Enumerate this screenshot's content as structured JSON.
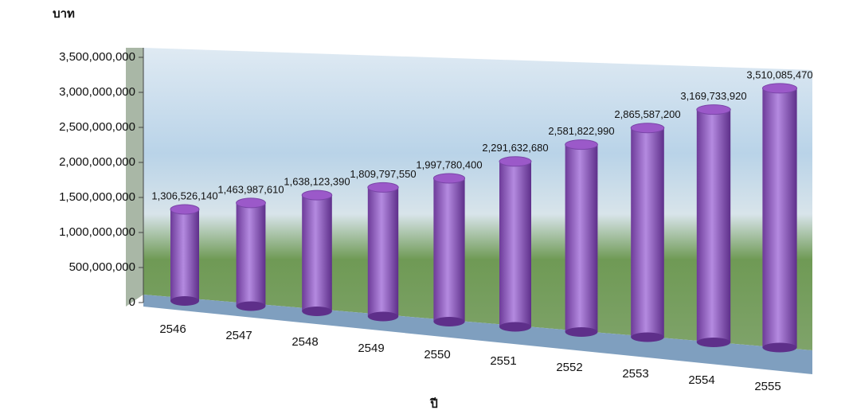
{
  "chart_data": {
    "type": "bar",
    "y_axis_title": "บาท",
    "x_axis_title": "ปี",
    "categories": [
      "2546",
      "2547",
      "2548",
      "2549",
      "2550",
      "2551",
      "2552",
      "2553",
      "2554",
      "2555"
    ],
    "values": [
      1306526140,
      1463987610,
      1638123390,
      1809797550,
      1997780400,
      2291632680,
      2581822990,
      2865587200,
      3169733920,
      3510085470
    ],
    "value_labels": [
      "1,306,526,140",
      "1,463,987,610",
      "1,638,123,390",
      "1,809,797,550",
      "1,997,780,400",
      "2,291,632,680",
      "2,581,822,990",
      "2,865,587,200",
      "3,169,733,920",
      "3,510,085,470"
    ],
    "color": "#9b59c9",
    "ylim": [
      0,
      3500000000
    ],
    "yticks": [
      0,
      {
        "value": 500000000,
        "label": "500,000,000"
      },
      {
        "value": 1000000000,
        "label": "1,000,000,000"
      },
      {
        "value": 1500000000,
        "label": "1,500,000,000"
      },
      {
        "value": 2000000000,
        "label": "2,000,000,000"
      },
      {
        "value": 2500000000,
        "label": "2,500,000,000"
      },
      {
        "value": 3000000000,
        "label": "3,000,000,000"
      },
      {
        "value": 3500000000,
        "label": "3,500,000,000"
      }
    ]
  }
}
